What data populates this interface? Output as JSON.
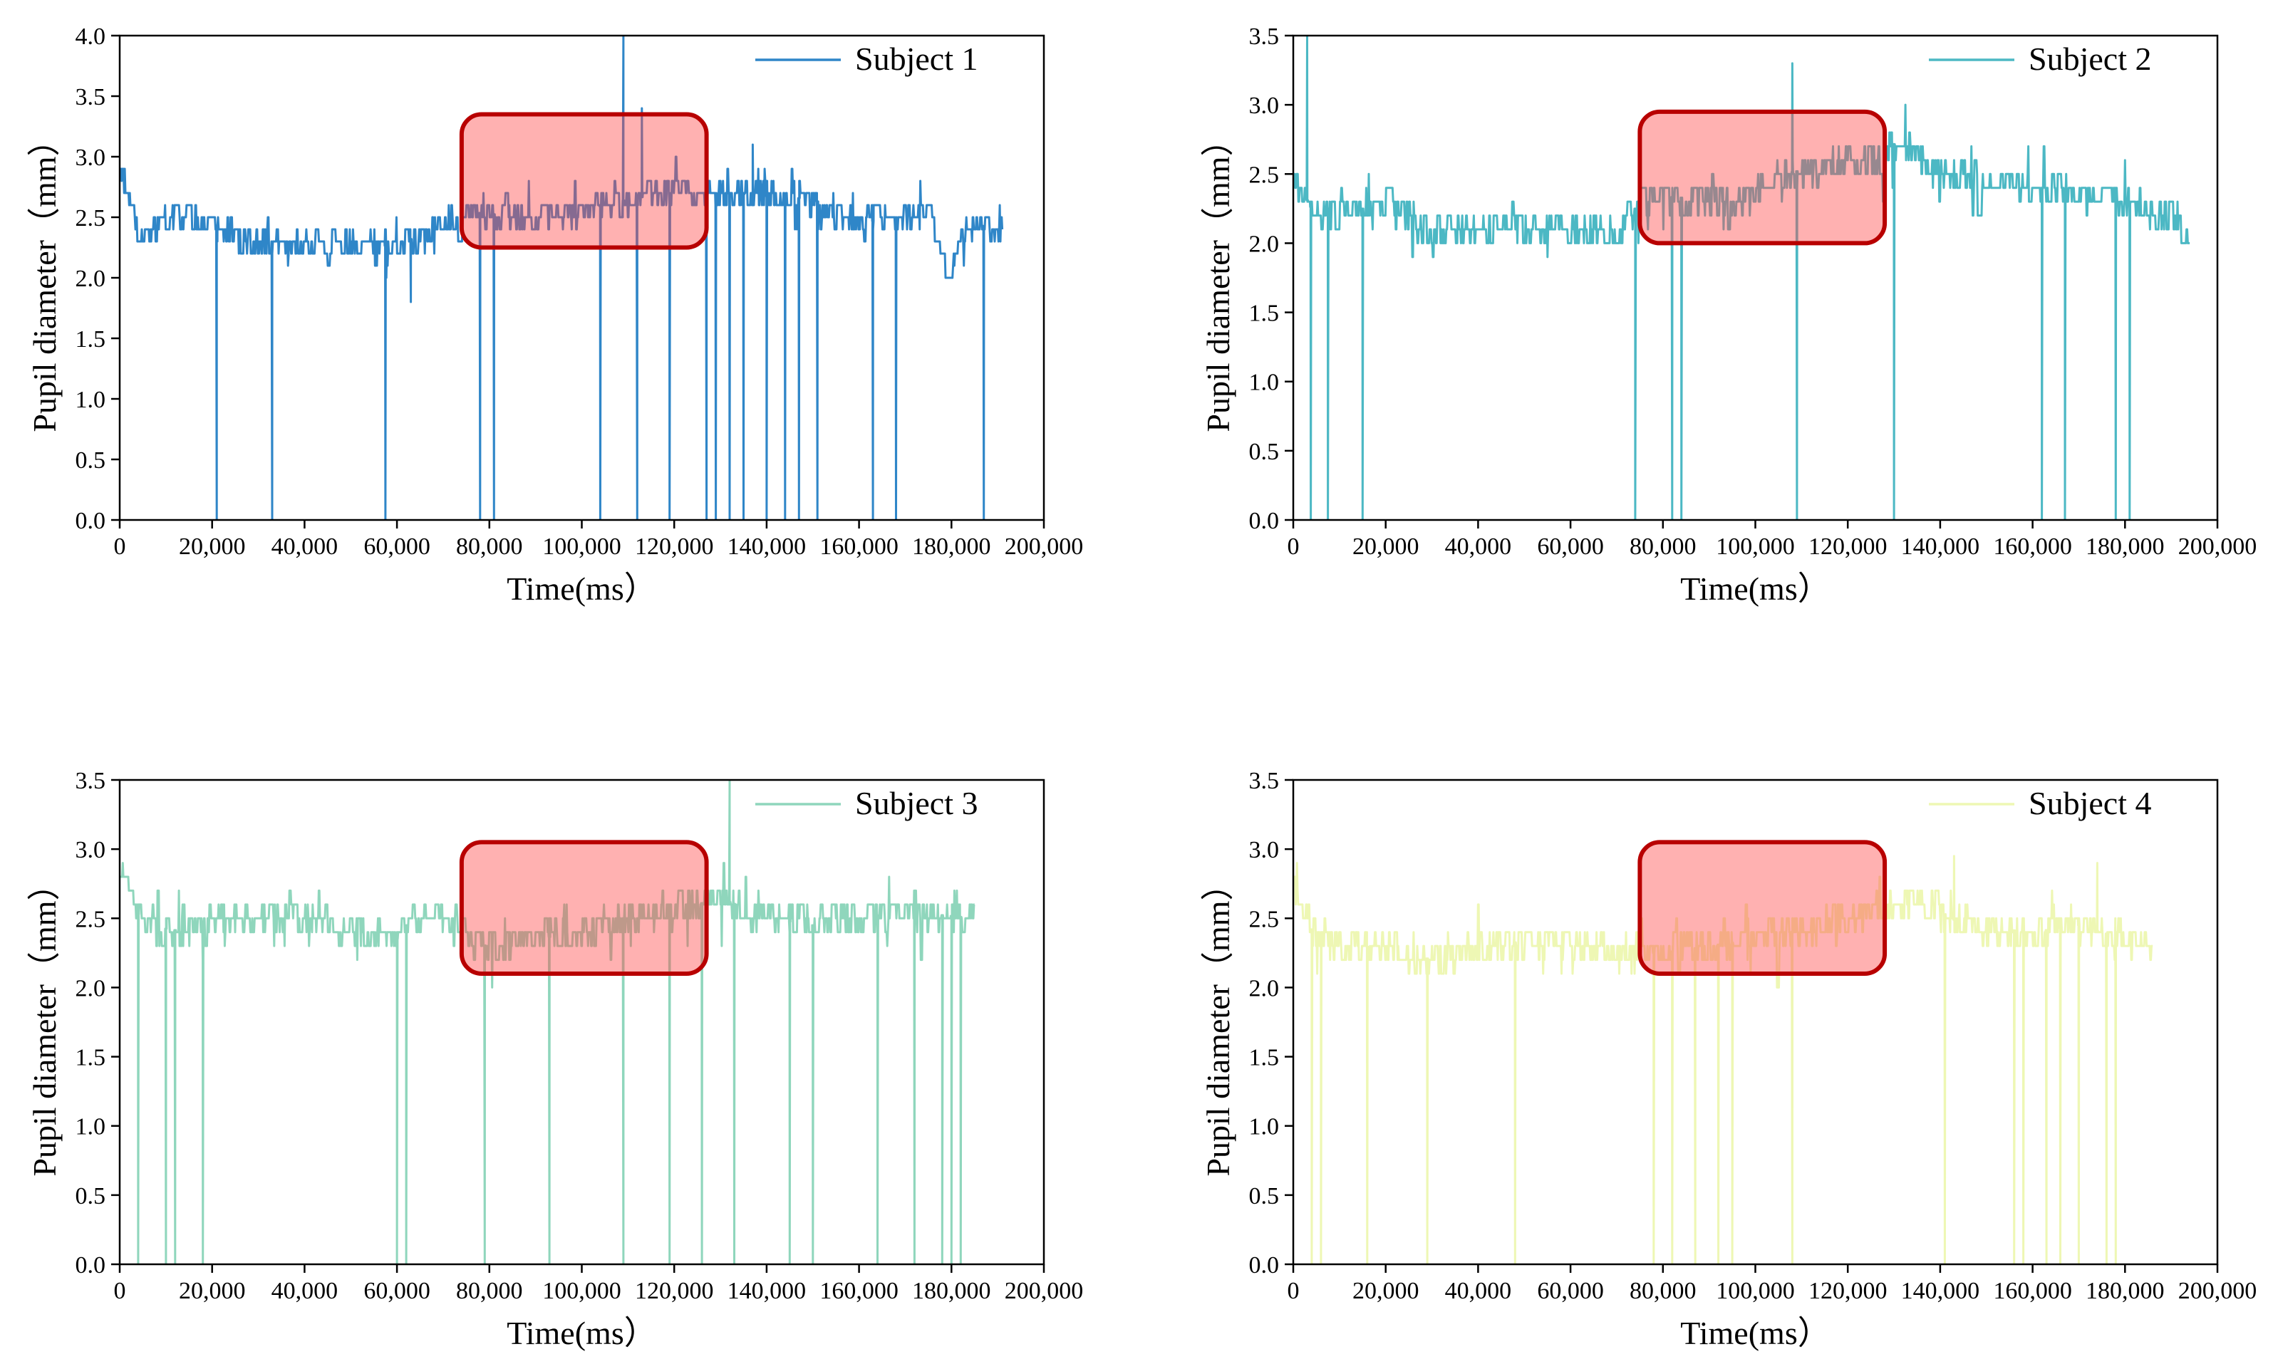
{
  "chart_data": [
    {
      "type": "line",
      "xlabel": "Time(ms）",
      "ylabel": "Pupil diameter（mm）",
      "xlim": [
        0,
        200000
      ],
      "ylim": [
        0,
        4.0
      ],
      "xticks": [
        "0",
        "20,000",
        "40,000",
        "60,000",
        "80,000",
        "100,000",
        "120,000",
        "140,000",
        "160,000",
        "180,000",
        "200,000"
      ],
      "yticks": [
        "0.0",
        "0.5",
        "1.0",
        "1.5",
        "2.0",
        "2.5",
        "3.0",
        "3.5",
        "4.0"
      ],
      "legend": "top-right",
      "grid": false,
      "highlight": {
        "x0": 74000,
        "x1": 127000,
        "y0": 2.25,
        "y1": 3.35
      },
      "series": [
        {
          "name": "Subject 1",
          "color": "#2f86c8",
          "x_range": [
            0,
            191000
          ],
          "baseline": [
            [
              0,
              2.9
            ],
            [
              5000,
              2.3
            ],
            [
              10000,
              2.5
            ],
            [
              20000,
              2.45
            ],
            [
              28000,
              2.3
            ],
            [
              50000,
              2.3
            ],
            [
              56000,
              2.25
            ],
            [
              66000,
              2.35
            ],
            [
              74000,
              2.55
            ],
            [
              88000,
              2.5
            ],
            [
              100000,
              2.55
            ],
            [
              110000,
              2.65
            ],
            [
              120000,
              2.7
            ],
            [
              130000,
              2.7
            ],
            [
              150000,
              2.65
            ],
            [
              160000,
              2.45
            ],
            [
              168000,
              2.5
            ],
            [
              175000,
              2.55
            ],
            [
              179000,
              2.05
            ],
            [
              184000,
              2.45
            ],
            [
              191000,
              2.4
            ]
          ],
          "spikes": [
            [
              21000,
              0.0
            ],
            [
              33000,
              0.0
            ],
            [
              57500,
              0.0
            ],
            [
              63000,
              1.8
            ],
            [
              78000,
              0.0
            ],
            [
              81000,
              0.0
            ],
            [
              104000,
              0.0
            ],
            [
              109000,
              4.0
            ],
            [
              112000,
              0.0
            ],
            [
              113000,
              3.4
            ],
            [
              119000,
              0.0
            ],
            [
              127000,
              0.0
            ],
            [
              129000,
              0.0
            ],
            [
              132000,
              0.0
            ],
            [
              135000,
              0.0
            ],
            [
              137000,
              3.1
            ],
            [
              140000,
              0.0
            ],
            [
              144000,
              0.0
            ],
            [
              147000,
              0.0
            ],
            [
              151000,
              0.0
            ],
            [
              163000,
              0.0
            ],
            [
              168000,
              0.0
            ],
            [
              187000,
              0.0
            ]
          ]
        }
      ]
    },
    {
      "type": "line",
      "xlabel": "Time(ms）",
      "ylabel": "Pupil diameter（mm）",
      "xlim": [
        0,
        200000
      ],
      "ylim": [
        0,
        3.5
      ],
      "xticks": [
        "0",
        "20,000",
        "40,000",
        "60,000",
        "80,000",
        "100,000",
        "120,000",
        "140,000",
        "160,000",
        "180,000",
        "200,000"
      ],
      "yticks": [
        "0.0",
        "0.5",
        "1.0",
        "1.5",
        "2.0",
        "2.5",
        "3.0",
        "3.5"
      ],
      "legend": "top-right",
      "grid": false,
      "highlight": {
        "x0": 75000,
        "x1": 128000,
        "y0": 2.0,
        "y1": 2.95
      },
      "series": [
        {
          "name": "Subject 2",
          "color": "#4cb8c4",
          "x_range": [
            0,
            194000
          ],
          "baseline": [
            [
              0,
              2.5
            ],
            [
              4000,
              2.25
            ],
            [
              20000,
              2.25
            ],
            [
              30000,
              2.05
            ],
            [
              45000,
              2.1
            ],
            [
              60000,
              2.1
            ],
            [
              70000,
              2.05
            ],
            [
              76000,
              2.35
            ],
            [
              95000,
              2.3
            ],
            [
              105000,
              2.5
            ],
            [
              115000,
              2.55
            ],
            [
              125000,
              2.55
            ],
            [
              131000,
              2.75
            ],
            [
              140000,
              2.5
            ],
            [
              150000,
              2.45
            ],
            [
              160000,
              2.4
            ],
            [
              170000,
              2.35
            ],
            [
              180000,
              2.3
            ],
            [
              190000,
              2.2
            ],
            [
              194000,
              2.05
            ]
          ],
          "spikes": [
            [
              3000,
              3.5
            ],
            [
              3800,
              0.0
            ],
            [
              7500,
              0.0
            ],
            [
              15000,
              0.0
            ],
            [
              74000,
              0.0
            ],
            [
              82000,
              0.0
            ],
            [
              84000,
              0.0
            ],
            [
              108000,
              3.3
            ],
            [
              109000,
              0.0
            ],
            [
              130000,
              0.0
            ],
            [
              162000,
              0.0
            ],
            [
              167000,
              0.0
            ],
            [
              178000,
              0.0
            ],
            [
              181000,
              0.0
            ]
          ]
        }
      ]
    },
    {
      "type": "line",
      "xlabel": "Time(ms）",
      "ylabel": "Pupil diameter（mm）",
      "xlim": [
        0,
        200000
      ],
      "ylim": [
        0,
        3.5
      ],
      "xticks": [
        "0",
        "20,000",
        "40,000",
        "60,000",
        "80,000",
        "100,000",
        "120,000",
        "140,000",
        "160,000",
        "180,000",
        "200,000"
      ],
      "yticks": [
        "0.0",
        "0.5",
        "1.0",
        "1.5",
        "2.0",
        "2.5",
        "3.0",
        "3.5"
      ],
      "legend": "top-right",
      "grid": false,
      "highlight": {
        "x0": 74000,
        "x1": 127000,
        "y0": 2.1,
        "y1": 3.05
      },
      "series": [
        {
          "name": "Subject 3",
          "color": "#8fd6bc",
          "x_range": [
            0,
            185000
          ],
          "baseline": [
            [
              0,
              2.85
            ],
            [
              5000,
              2.45
            ],
            [
              15000,
              2.4
            ],
            [
              20000,
              2.5
            ],
            [
              40000,
              2.5
            ],
            [
              50000,
              2.4
            ],
            [
              60000,
              2.35
            ],
            [
              64000,
              2.55
            ],
            [
              74000,
              2.45
            ],
            [
              78000,
              2.3
            ],
            [
              90000,
              2.35
            ],
            [
              100000,
              2.4
            ],
            [
              110000,
              2.5
            ],
            [
              120000,
              2.55
            ],
            [
              130000,
              2.65
            ],
            [
              140000,
              2.5
            ],
            [
              150000,
              2.45
            ],
            [
              160000,
              2.5
            ],
            [
              170000,
              2.55
            ],
            [
              185000,
              2.5
            ]
          ],
          "spikes": [
            [
              4000,
              0.0
            ],
            [
              10000,
              0.0
            ],
            [
              12000,
              0.0
            ],
            [
              18000,
              0.0
            ],
            [
              60000,
              0.0
            ],
            [
              62000,
              0.0
            ],
            [
              79000,
              0.0
            ],
            [
              93000,
              0.0
            ],
            [
              109000,
              0.0
            ],
            [
              119000,
              0.0
            ],
            [
              126000,
              0.0
            ],
            [
              132000,
              3.5
            ],
            [
              133000,
              0.0
            ],
            [
              145000,
              0.0
            ],
            [
              150000,
              0.0
            ],
            [
              164000,
              0.0
            ],
            [
              172000,
              0.0
            ],
            [
              178000,
              0.0
            ],
            [
              180000,
              0.0
            ],
            [
              182000,
              0.0
            ]
          ]
        }
      ]
    },
    {
      "type": "line",
      "xlabel": "Time(ms）",
      "ylabel": "Pupil diameter（mm）",
      "xlim": [
        0,
        200000
      ],
      "ylim": [
        0,
        3.5
      ],
      "xticks": [
        "0",
        "20,000",
        "40,000",
        "60,000",
        "80,000",
        "100,000",
        "120,000",
        "140,000",
        "160,000",
        "180,000",
        "200,000"
      ],
      "yticks": [
        "0.0",
        "0.5",
        "1.0",
        "1.5",
        "2.0",
        "2.5",
        "3.0",
        "3.5"
      ],
      "legend": "top-right",
      "grid": false,
      "highlight": {
        "x0": 75000,
        "x1": 128000,
        "y0": 2.1,
        "y1": 3.05
      },
      "series": [
        {
          "name": "Subject 4",
          "color": "#eef7b4",
          "x_range": [
            0,
            186000
          ],
          "baseline": [
            [
              0,
              2.7
            ],
            [
              5000,
              2.35
            ],
            [
              15000,
              2.3
            ],
            [
              25000,
              2.25
            ],
            [
              30000,
              2.2
            ],
            [
              40000,
              2.3
            ],
            [
              55000,
              2.35
            ],
            [
              70000,
              2.25
            ],
            [
              80000,
              2.25
            ],
            [
              100000,
              2.35
            ],
            [
              115000,
              2.45
            ],
            [
              128000,
              2.6
            ],
            [
              135000,
              2.65
            ],
            [
              145000,
              2.45
            ],
            [
              160000,
              2.4
            ],
            [
              170000,
              2.45
            ],
            [
              180000,
              2.35
            ],
            [
              186000,
              2.3
            ]
          ],
          "spikes": [
            [
              4000,
              0.0
            ],
            [
              6000,
              0.0
            ],
            [
              16000,
              0.0
            ],
            [
              29000,
              0.0
            ],
            [
              48000,
              0.0
            ],
            [
              78000,
              0.0
            ],
            [
              82000,
              0.0
            ],
            [
              87000,
              0.0
            ],
            [
              92000,
              0.0
            ],
            [
              95000,
              0.0
            ],
            [
              108000,
              0.0
            ],
            [
              141000,
              0.0
            ],
            [
              143000,
              2.95
            ],
            [
              156000,
              0.0
            ],
            [
              158000,
              0.0
            ],
            [
              163000,
              0.0
            ],
            [
              166000,
              0.0
            ],
            [
              170000,
              0.0
            ],
            [
              174000,
              2.9
            ],
            [
              176000,
              0.0
            ],
            [
              178000,
              0.0
            ]
          ]
        }
      ]
    }
  ]
}
